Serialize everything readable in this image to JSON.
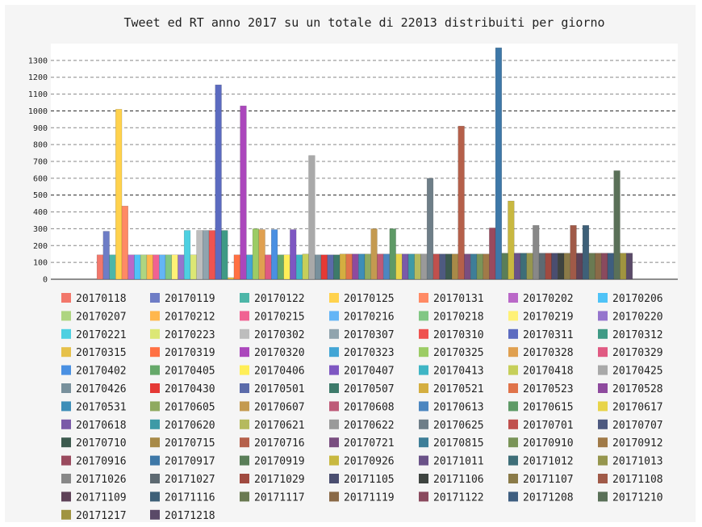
{
  "chart_data": {
    "type": "bar",
    "title": "Tweet ed RT anno 2017 su un totale di 22013 distribuiti per giorno",
    "xlabel": "",
    "ylabel": "",
    "ylim": [
      0,
      1400
    ],
    "yticks": [
      0,
      100,
      200,
      300,
      400,
      500,
      600,
      700,
      800,
      900,
      1000,
      1100,
      1200,
      1300
    ],
    "grid": true,
    "legend_position": "bottom",
    "series": [
      {
        "name": "20170118",
        "value": 145,
        "color": "#F2776B"
      },
      {
        "name": "20170119",
        "value": 285,
        "color": "#6E7DC6"
      },
      {
        "name": "20170122",
        "value": 145,
        "color": "#4DB6A8"
      },
      {
        "name": "20170125",
        "value": 1010,
        "color": "#FFD24D"
      },
      {
        "name": "20170131",
        "value": 435,
        "color": "#FF8A65"
      },
      {
        "name": "20170202",
        "value": 145,
        "color": "#BA68C8"
      },
      {
        "name": "20170206",
        "value": 145,
        "color": "#4FC3F7"
      },
      {
        "name": "20170207",
        "value": 145,
        "color": "#AED581"
      },
      {
        "name": "20170212",
        "value": 145,
        "color": "#FFB74D"
      },
      {
        "name": "20170215",
        "value": 145,
        "color": "#F06292"
      },
      {
        "name": "20170216",
        "value": 145,
        "color": "#64B5F6"
      },
      {
        "name": "20170218",
        "value": 145,
        "color": "#81C784"
      },
      {
        "name": "20170219",
        "value": 145,
        "color": "#FFF176"
      },
      {
        "name": "20170220",
        "value": 145,
        "color": "#9575CD"
      },
      {
        "name": "20170221",
        "value": 290,
        "color": "#4DD0E1"
      },
      {
        "name": "20170223",
        "value": 145,
        "color": "#DCE775"
      },
      {
        "name": "20170302",
        "value": 290,
        "color": "#BDBDBD"
      },
      {
        "name": "20170307",
        "value": 290,
        "color": "#90A4AE"
      },
      {
        "name": "20170310",
        "value": 290,
        "color": "#EF5350"
      },
      {
        "name": "20170311",
        "value": 1155,
        "color": "#5C6BC0"
      },
      {
        "name": "20170312",
        "value": 290,
        "color": "#3F9A85"
      },
      {
        "name": "20170315",
        "value": 10,
        "color": "#E6C14A"
      },
      {
        "name": "20170319",
        "value": 145,
        "color": "#FF7043"
      },
      {
        "name": "20170320",
        "value": 1030,
        "color": "#AB47BC"
      },
      {
        "name": "20170323",
        "value": 145,
        "color": "#42A5D5"
      },
      {
        "name": "20170325",
        "value": 300,
        "color": "#9CCC65"
      },
      {
        "name": "20170328",
        "value": 295,
        "color": "#E0A050"
      },
      {
        "name": "20170329",
        "value": 145,
        "color": "#E05A82"
      },
      {
        "name": "20170402",
        "value": 295,
        "color": "#4A90E2"
      },
      {
        "name": "20170405",
        "value": 145,
        "color": "#66A96A"
      },
      {
        "name": "20170406",
        "value": 145,
        "color": "#FFEE58"
      },
      {
        "name": "20170407",
        "value": 295,
        "color": "#7E57C2"
      },
      {
        "name": "20170413",
        "value": 145,
        "color": "#3FB5C5"
      },
      {
        "name": "20170418",
        "value": 150,
        "color": "#C6CF5A"
      },
      {
        "name": "20170425",
        "value": 735,
        "color": "#A9A9A9"
      },
      {
        "name": "20170426",
        "value": 145,
        "color": "#78909C"
      },
      {
        "name": "20170430",
        "value": 145,
        "color": "#E53935"
      },
      {
        "name": "20170501",
        "value": 145,
        "color": "#5B6BAA"
      },
      {
        "name": "20170507",
        "value": 145,
        "color": "#3D7A6A"
      },
      {
        "name": "20170521",
        "value": 150,
        "color": "#D4AE40"
      },
      {
        "name": "20170523",
        "value": 150,
        "color": "#E0734A"
      },
      {
        "name": "20170528",
        "value": 150,
        "color": "#8E4A9E"
      },
      {
        "name": "20170531",
        "value": 150,
        "color": "#3E8EB8"
      },
      {
        "name": "20170605",
        "value": 150,
        "color": "#8FAA60"
      },
      {
        "name": "20170607",
        "value": 300,
        "color": "#C49A50"
      },
      {
        "name": "20170608",
        "value": 150,
        "color": "#BE5A78"
      },
      {
        "name": "20170613",
        "value": 150,
        "color": "#4C86C0"
      },
      {
        "name": "20170615",
        "value": 300,
        "color": "#5E9A66"
      },
      {
        "name": "20170617",
        "value": 150,
        "color": "#E8D44A"
      },
      {
        "name": "20170618",
        "value": 150,
        "color": "#7A5AA8"
      },
      {
        "name": "20170620",
        "value": 150,
        "color": "#3E9AA6"
      },
      {
        "name": "20170621",
        "value": 150,
        "color": "#B5BA5E"
      },
      {
        "name": "20170622",
        "value": 150,
        "color": "#9A9A9A"
      },
      {
        "name": "20170625",
        "value": 600,
        "color": "#6E7E88"
      },
      {
        "name": "20170701",
        "value": 150,
        "color": "#C0504D"
      },
      {
        "name": "20170707",
        "value": 150,
        "color": "#4E5A80"
      },
      {
        "name": "20170710",
        "value": 150,
        "color": "#3C5A4E"
      },
      {
        "name": "20170715",
        "value": 150,
        "color": "#A88A48"
      },
      {
        "name": "20170716",
        "value": 910,
        "color": "#B5604A"
      },
      {
        "name": "20170721",
        "value": 150,
        "color": "#7A4E80"
      },
      {
        "name": "20170815",
        "value": 150,
        "color": "#3E7E98"
      },
      {
        "name": "20170910",
        "value": 150,
        "color": "#7A9458"
      },
      {
        "name": "20170912",
        "value": 150,
        "color": "#A07A48"
      },
      {
        "name": "20170916",
        "value": 305,
        "color": "#9A4A5E"
      },
      {
        "name": "20170917",
        "value": 1375,
        "color": "#3E78A8"
      },
      {
        "name": "20170919",
        "value": 155,
        "color": "#5A7E58"
      },
      {
        "name": "20170926",
        "value": 465,
        "color": "#C8B840"
      },
      {
        "name": "20171011",
        "value": 155,
        "color": "#6A5288"
      },
      {
        "name": "20171012",
        "value": 155,
        "color": "#3E6E78"
      },
      {
        "name": "20171013",
        "value": 155,
        "color": "#96964E"
      },
      {
        "name": "20171026",
        "value": 320,
        "color": "#888888"
      },
      {
        "name": "20171027",
        "value": 155,
        "color": "#5E6A72"
      },
      {
        "name": "20171029",
        "value": 155,
        "color": "#A04A40"
      },
      {
        "name": "20171105",
        "value": 155,
        "color": "#4A4E70"
      },
      {
        "name": "20171106",
        "value": 155,
        "color": "#3E4440"
      },
      {
        "name": "20171107",
        "value": 155,
        "color": "#8A7A48"
      },
      {
        "name": "20171108",
        "value": 320,
        "color": "#A05A48"
      },
      {
        "name": "20171109",
        "value": 155,
        "color": "#5E4258"
      },
      {
        "name": "20171116",
        "value": 320,
        "color": "#3E6078"
      },
      {
        "name": "20171117",
        "value": 155,
        "color": "#6A7A52"
      },
      {
        "name": "20171119",
        "value": 155,
        "color": "#8A6A48"
      },
      {
        "name": "20171122",
        "value": 155,
        "color": "#8A4A5E"
      },
      {
        "name": "20171208",
        "value": 155,
        "color": "#3E5E80"
      },
      {
        "name": "20171210",
        "value": 645,
        "color": "#5A7058"
      },
      {
        "name": "20171217",
        "value": 155,
        "color": "#A09440"
      },
      {
        "name": "20171218",
        "value": 155,
        "color": "#5A4A68"
      }
    ]
  }
}
